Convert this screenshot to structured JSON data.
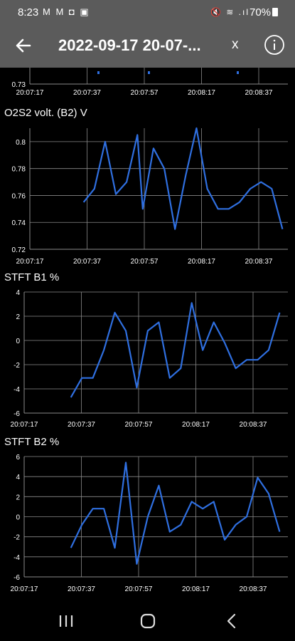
{
  "status_bar": {
    "time": "8:23",
    "notifications": "M M ◘ ▣",
    "system_icons": "🔇 ≋ .ıl",
    "battery": "70%"
  },
  "app_bar": {
    "title": "2022-09-17 20-07-...",
    "close_label": "x",
    "back_icon": "arrow-left",
    "info_icon": "info-circle"
  },
  "colors": {
    "line": "#2f6fe0",
    "grid": "#8a8a8a",
    "text": "#ffffff",
    "background": "#000000",
    "bar": "#5b5b5b"
  },
  "chart_data": [
    {
      "type": "line",
      "title": "",
      "xlabel": "",
      "ylabel": "",
      "x_ticks": [
        "20:07:17",
        "20:07:37",
        "20:07:57",
        "20:08:17",
        "20:08:37"
      ],
      "y_ticks": [
        "0.73"
      ],
      "note": "partially visible, scrolled"
    },
    {
      "type": "line",
      "title": "O2S2 volt. (B2)  V",
      "x_ticks": [
        "20:07:17",
        "20:07:37",
        "20:07:57",
        "20:08:17",
        "20:08:37"
      ],
      "y_ticks": [
        "0.72",
        "0.74",
        "0.76",
        "0.78",
        "0.8"
      ],
      "ylim": [
        0.72,
        0.81
      ],
      "series": [
        {
          "x": [
            20,
            24,
            28,
            32,
            36,
            40,
            42,
            46,
            50,
            54,
            58,
            62,
            66,
            70,
            74,
            78,
            82,
            86,
            90,
            94
          ],
          "values": [
            0.755,
            0.765,
            0.8,
            0.761,
            0.77,
            0.805,
            0.75,
            0.795,
            0.78,
            0.735,
            0.775,
            0.81,
            0.765,
            0.75,
            0.75,
            0.755,
            0.765,
            0.77,
            0.765,
            0.735
          ]
        }
      ]
    },
    {
      "type": "line",
      "title": "STFT B1  %",
      "x_ticks": [
        "20:07:17",
        "20:07:37",
        "20:07:57",
        "20:08:17",
        "20:08:37"
      ],
      "y_ticks": [
        "-6",
        "-4",
        "-2",
        "0",
        "2",
        "4"
      ],
      "ylim": [
        -6,
        4
      ],
      "series": [
        {
          "x": [
            17,
            21,
            25,
            29,
            33,
            37,
            41,
            45,
            49,
            53,
            57,
            61,
            65,
            69,
            73,
            77,
            81,
            85,
            89,
            93
          ],
          "values": [
            -4.7,
            -3.1,
            -3.1,
            -0.8,
            2.3,
            0.8,
            -3.9,
            0.8,
            1.5,
            -3.1,
            -2.3,
            3.1,
            -0.8,
            1.5,
            -0.2,
            -2.3,
            -1.6,
            -1.6,
            -0.8,
            2.3
          ]
        }
      ]
    },
    {
      "type": "line",
      "title": "STFT B2  %",
      "x_ticks": [
        "20:07:17",
        "20:07:37",
        "20:07:57",
        "20:08:17",
        "20:08:37"
      ],
      "y_ticks": [
        "-6",
        "-4",
        "-2",
        "0",
        "2",
        "4",
        "6"
      ],
      "ylim": [
        -6,
        6
      ],
      "series": [
        {
          "x": [
            17,
            21,
            25,
            29,
            33,
            37,
            41,
            45,
            49,
            53,
            57,
            61,
            65,
            69,
            73,
            77,
            81,
            85,
            89,
            93
          ],
          "values": [
            -3.1,
            -0.8,
            0.8,
            0.8,
            -3.1,
            5.4,
            -4.7,
            0,
            3.1,
            -1.5,
            -0.8,
            1.5,
            0.8,
            1.5,
            -2.3,
            -0.8,
            0,
            3.9,
            2.3,
            -1.5
          ]
        }
      ]
    }
  ]
}
